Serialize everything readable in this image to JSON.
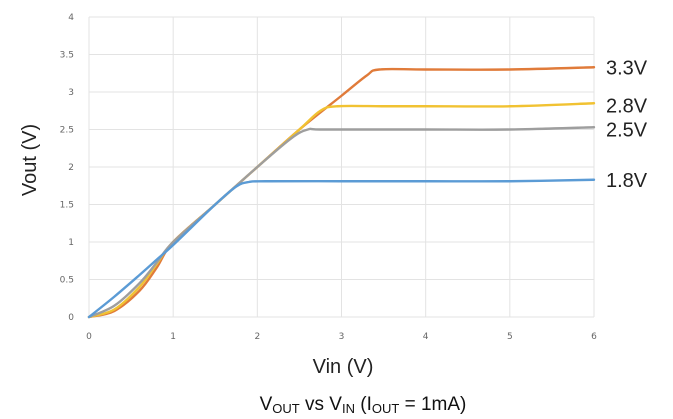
{
  "chart_data": {
    "type": "line",
    "title": "",
    "xlabel": "Vin (V)",
    "ylabel": "Vout (V)",
    "xlim": [
      0,
      6
    ],
    "ylim": [
      0,
      4
    ],
    "x_ticks": [
      "0",
      "1",
      "2",
      "3",
      "4",
      "5",
      "6"
    ],
    "y_ticks": [
      "0",
      "0.5",
      "1",
      "1.5",
      "2",
      "2.5",
      "3",
      "3.5",
      "4"
    ],
    "grid": true,
    "caption": {
      "v1": "V",
      "s1": "OUT",
      "t1": " vs V",
      "s2": "IN",
      "t2": " (I",
      "s3": "OUT",
      "t3": " = 1mA)"
    },
    "series": [
      {
        "name": "3.3V",
        "color": "#e07b3a",
        "x": [
          0,
          0.3,
          0.6,
          0.8,
          1.0,
          1.5,
          2.0,
          2.5,
          3.0,
          3.3,
          3.45,
          4.0,
          5.0,
          6.0
        ],
        "y": [
          0,
          0.08,
          0.35,
          0.65,
          1.0,
          1.5,
          2.0,
          2.5,
          2.95,
          3.22,
          3.3,
          3.3,
          3.3,
          3.33
        ]
      },
      {
        "name": "2.8V",
        "color": "#f1c232",
        "x": [
          0,
          0.3,
          0.6,
          0.8,
          1.0,
          1.5,
          2.0,
          2.5,
          2.75,
          2.95,
          3.5,
          4.0,
          5.0,
          6.0
        ],
        "y": [
          0,
          0.1,
          0.4,
          0.7,
          1.0,
          1.5,
          2.0,
          2.5,
          2.75,
          2.81,
          2.81,
          2.81,
          2.81,
          2.85
        ]
      },
      {
        "name": "2.5V",
        "color": "#9e9e9e",
        "x": [
          0,
          0.3,
          0.6,
          0.8,
          1.0,
          1.5,
          2.0,
          2.4,
          2.6,
          2.8,
          4.0,
          5.0,
          6.0
        ],
        "y": [
          0,
          0.15,
          0.45,
          0.72,
          1.0,
          1.5,
          2.0,
          2.38,
          2.5,
          2.5,
          2.5,
          2.5,
          2.53
        ]
      },
      {
        "name": "1.8V",
        "color": "#5b9bd5",
        "x": [
          0,
          0.3,
          0.6,
          0.8,
          1.0,
          1.5,
          1.75,
          1.9,
          2.1,
          3.0,
          4.0,
          5.0,
          6.0
        ],
        "y": [
          0,
          0.27,
          0.56,
          0.76,
          0.96,
          1.5,
          1.74,
          1.8,
          1.81,
          1.81,
          1.81,
          1.81,
          1.83
        ]
      }
    ]
  }
}
